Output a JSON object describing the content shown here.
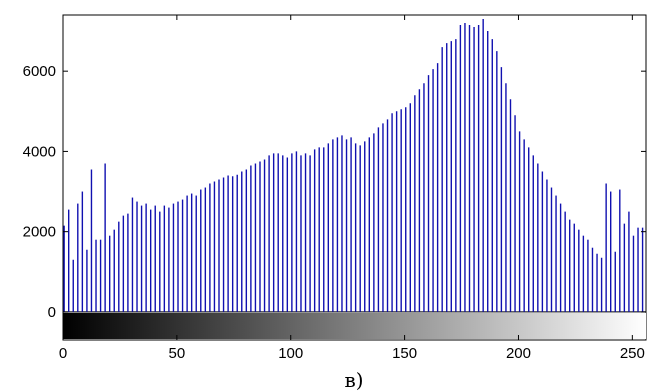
{
  "chart_data": {
    "type": "bar",
    "title": "",
    "xlabel": "",
    "ylabel": "",
    "xlim": [
      0,
      256
    ],
    "ylim": [
      -700,
      7400
    ],
    "x_ticks": [
      "0",
      "50",
      "100",
      "150",
      "200",
      "250"
    ],
    "y_ticks": [
      "0",
      "2000",
      "4000",
      "6000"
    ],
    "caption": "в)",
    "bar_color": "#1010b0",
    "colorbar": "grayscale gradient 0 (black) to 255 (white)",
    "bins": [
      0,
      2,
      4,
      6,
      8,
      10,
      12,
      14,
      16,
      18,
      20,
      22,
      24,
      26,
      28,
      30,
      32,
      34,
      36,
      38,
      40,
      42,
      44,
      46,
      48,
      50,
      52,
      54,
      56,
      58,
      60,
      62,
      64,
      66,
      68,
      70,
      72,
      74,
      76,
      78,
      80,
      82,
      84,
      86,
      88,
      90,
      92,
      94,
      96,
      98,
      100,
      102,
      104,
      106,
      108,
      110,
      112,
      114,
      116,
      118,
      120,
      122,
      124,
      126,
      128,
      130,
      132,
      134,
      136,
      138,
      140,
      142,
      144,
      146,
      148,
      150,
      152,
      154,
      156,
      158,
      160,
      162,
      164,
      166,
      168,
      170,
      172,
      174,
      176,
      178,
      180,
      182,
      184,
      186,
      188,
      190,
      192,
      194,
      196,
      198,
      200,
      202,
      204,
      206,
      208,
      210,
      212,
      214,
      216,
      218,
      220,
      222,
      224,
      226,
      228,
      230,
      232,
      234,
      236,
      238,
      240,
      242,
      244,
      246,
      248,
      250,
      252,
      254
    ],
    "values": [
      2150,
      2550,
      1300,
      2700,
      3000,
      1550,
      3550,
      1800,
      1800,
      3700,
      1900,
      2050,
      2250,
      2400,
      2450,
      2850,
      2750,
      2650,
      2700,
      2550,
      2650,
      2500,
      2650,
      2600,
      2700,
      2750,
      2800,
      2900,
      2950,
      2900,
      3050,
      3100,
      3200,
      3250,
      3300,
      3350,
      3400,
      3380,
      3420,
      3500,
      3550,
      3650,
      3700,
      3750,
      3800,
      3900,
      3950,
      3950,
      3900,
      3850,
      3950,
      4000,
      3900,
      3950,
      3900,
      4050,
      4100,
      4100,
      4200,
      4300,
      4350,
      4400,
      4300,
      4350,
      4200,
      4150,
      4250,
      4350,
      4450,
      4600,
      4700,
      4800,
      4950,
      5000,
      5050,
      5100,
      5200,
      5400,
      5550,
      5700,
      5900,
      6050,
      6200,
      6600,
      6700,
      6750,
      6800,
      7150,
      7200,
      7150,
      7100,
      7150,
      7300,
      7000,
      6800,
      6500,
      6100,
      5700,
      5300,
      4900,
      4500,
      4300,
      4100,
      3900,
      3700,
      3500,
      3300,
      3100,
      2900,
      2700,
      2500,
      2300,
      2200,
      2050,
      1900,
      1800,
      1600,
      1450,
      1350,
      3200,
      3000,
      1500,
      3050,
      2200,
      2500,
      1900,
      2100,
      2100
    ]
  }
}
